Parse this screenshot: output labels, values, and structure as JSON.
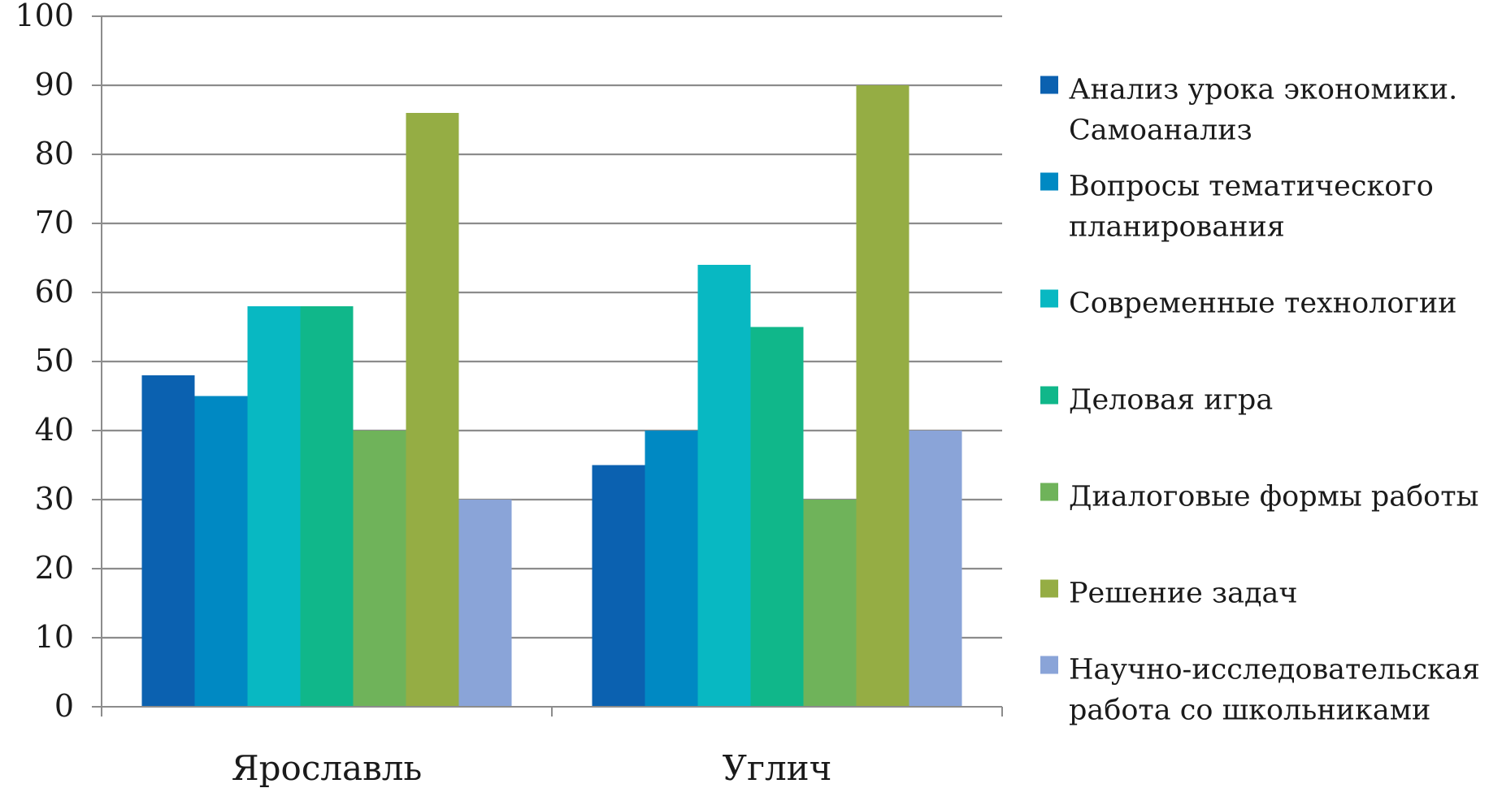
{
  "chart_data": {
    "type": "bar",
    "title": "",
    "xlabel": "",
    "ylabel": "",
    "categories": [
      "Ярославль",
      "Углич"
    ],
    "ylim": [
      0,
      100
    ],
    "yticks": [
      0,
      10,
      20,
      30,
      40,
      50,
      60,
      70,
      80,
      90,
      100
    ],
    "grid": true,
    "legend_position": "right",
    "series": [
      {
        "name_lines": [
          "Анализ урока экономики.",
          "Самоанализ"
        ],
        "color": "#0b61b0",
        "values": [
          48,
          35
        ]
      },
      {
        "name_lines": [
          "Вопросы тематического",
          "планирования"
        ],
        "color": "#0089c3",
        "values": [
          45,
          40
        ]
      },
      {
        "name_lines": [
          "Современные технологии"
        ],
        "color": "#08b8c2",
        "values": [
          58,
          64
        ]
      },
      {
        "name_lines": [
          "Деловая игра"
        ],
        "color": "#10b78a",
        "values": [
          58,
          55
        ]
      },
      {
        "name_lines": [
          "Диалоговые формы работы"
        ],
        "color": "#6fb35a",
        "values": [
          40,
          30
        ]
      },
      {
        "name_lines": [
          "Решение задач"
        ],
        "color": "#95ad44",
        "values": [
          86,
          90
        ]
      },
      {
        "name_lines": [
          "Научно-исследовательская",
          "работа со школьниками"
        ],
        "color": "#8aa4d8",
        "values": [
          30,
          40
        ]
      }
    ]
  }
}
